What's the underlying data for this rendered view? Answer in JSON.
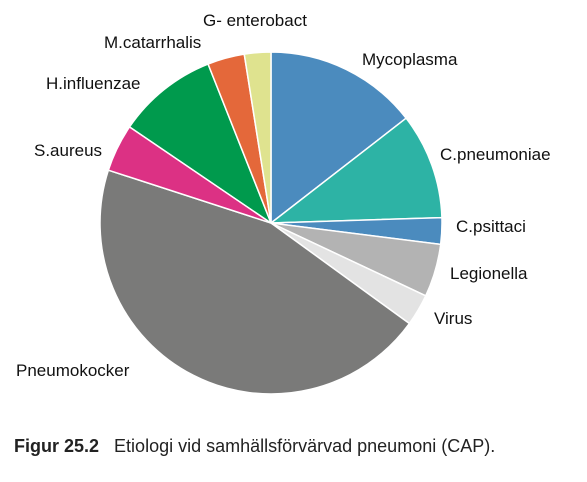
{
  "chart_data": {
    "type": "pie",
    "title": "",
    "slices": [
      {
        "label": "Mycoplasma",
        "value": 14.5,
        "color": "#4b8bbe"
      },
      {
        "label": "C.pneumoniae",
        "value": 10.0,
        "color": "#2db3a5"
      },
      {
        "label": "C.psittaci",
        "value": 2.5,
        "color": "#4b8bbe"
      },
      {
        "label": "Legionella",
        "value": 5.0,
        "color": "#b3b3b3"
      },
      {
        "label": "Virus",
        "value": 3.0,
        "color": "#e3e3e3"
      },
      {
        "label": "Pneumokocker",
        "value": 45.0,
        "color": "#7a7a79"
      },
      {
        "label": "S.aureus",
        "value": 4.5,
        "color": "#dc3184"
      },
      {
        "label": "H.influenzae",
        "value": 9.5,
        "color": "#009a4d"
      },
      {
        "label": "M.catarrhalis",
        "value": 3.5,
        "color": "#e4683a"
      },
      {
        "label": "G- enterobact",
        "value": 2.5,
        "color": "#dfe38f"
      }
    ],
    "start_position": "top, clockwise"
  },
  "caption": {
    "label": "Figur 25.2",
    "text": "Etiologi vid samhällsförvärvad pneumoni (CAP)."
  }
}
